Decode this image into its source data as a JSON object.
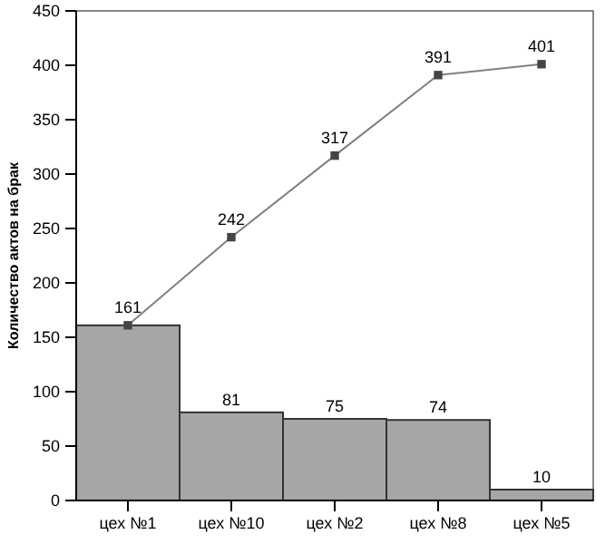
{
  "chart_data": {
    "type": "bar",
    "ylabel": "Количество актов на брак",
    "categories": [
      "цех №1",
      "цех №10",
      "цех №2",
      "цех №8",
      "цех №5"
    ],
    "series": [
      {
        "color": "#a6a6a6",
        "values": [
          161,
          81,
          75,
          74,
          10
        ],
        "value_labels": [
          null,
          "81",
          "75",
          "74",
          "10"
        ]
      },
      {
        "type": "line",
        "color": "#808080",
        "values": [
          161,
          242,
          317,
          391,
          401
        ],
        "value_labels": [
          "161",
          "242",
          "317",
          "391",
          "401"
        ]
      }
    ],
    "ylim": [
      0,
      450
    ],
    "yticks": [
      0,
      50,
      100,
      150,
      200,
      250,
      300,
      350,
      400,
      450
    ],
    "marker": "square"
  }
}
